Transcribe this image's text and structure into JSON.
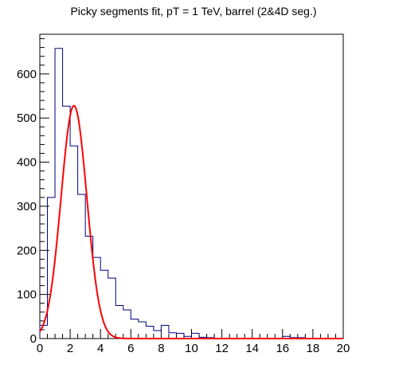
{
  "chart_data": {
    "type": "histogram",
    "title": "Picky segments fit, pT = 1 TeV, barrel (2&4D seg.)",
    "xlabel": "",
    "ylabel": "",
    "xlim": [
      0,
      20
    ],
    "ylim": [
      0,
      690
    ],
    "x_ticks": [
      0,
      2,
      4,
      6,
      8,
      10,
      12,
      14,
      16,
      18,
      20
    ],
    "y_ticks": [
      0,
      100,
      200,
      300,
      400,
      500,
      600
    ],
    "grid": false,
    "legend": "none",
    "bin_width": 0.5,
    "series": [
      {
        "kind": "histogram",
        "color": "#000080",
        "bin_edges_start": 0,
        "values": [
          30,
          320,
          658,
          527,
          437,
          327,
          232,
          184,
          155,
          137,
          75,
          65,
          44,
          38,
          28,
          18,
          30,
          13,
          12,
          5,
          12,
          3,
          2,
          1,
          1,
          0,
          0,
          0,
          0,
          0,
          0,
          0,
          5,
          2,
          2,
          0,
          0,
          0,
          0,
          0
        ]
      },
      {
        "kind": "gaussian-fit",
        "color": "#ff0000",
        "amplitude": 528,
        "mean": 2.25,
        "sigma": 0.85,
        "x_range": [
          0,
          20
        ]
      }
    ]
  }
}
